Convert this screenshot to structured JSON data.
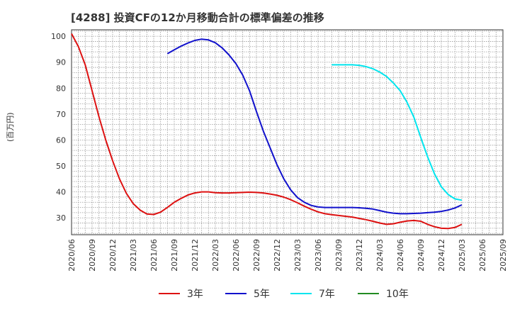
{
  "chart_data": {
    "type": "line",
    "title": "[4288]  投資CFの12か月移動合計の標準偏差の推移",
    "ylabel": "(百万円)",
    "xlabel": "",
    "ylim": [
      23.5,
      102.5
    ],
    "yticks": [
      30,
      40,
      50,
      60,
      70,
      80,
      90,
      100
    ],
    "xticks": [
      "2020/06",
      "2020/09",
      "2020/12",
      "2021/03",
      "2021/06",
      "2021/09",
      "2021/12",
      "2022/03",
      "2022/06",
      "2022/09",
      "2022/12",
      "2023/03",
      "2023/06",
      "2023/09",
      "2023/12",
      "2024/03",
      "2024/06",
      "2024/09",
      "2024/12",
      "2025/03",
      "2025/06",
      "2025/09"
    ],
    "grid": true,
    "legend_position": "bottom",
    "series": [
      {
        "name": "3年",
        "color": "#dd1111",
        "x": [
          "2020/06",
          "2020/07",
          "2020/08",
          "2020/09",
          "2020/10",
          "2020/11",
          "2020/12",
          "2021/01",
          "2021/02",
          "2021/03",
          "2021/04",
          "2021/05",
          "2021/06",
          "2021/07",
          "2021/08",
          "2021/09",
          "2021/10",
          "2021/11",
          "2021/12",
          "2022/01",
          "2022/02",
          "2022/03",
          "2022/04",
          "2022/05",
          "2022/06",
          "2022/07",
          "2022/08",
          "2022/09",
          "2022/10",
          "2022/11",
          "2022/12",
          "2023/01",
          "2023/02",
          "2023/03",
          "2023/04",
          "2023/05",
          "2023/06",
          "2023/07",
          "2023/08",
          "2023/09",
          "2023/10",
          "2023/11",
          "2023/12",
          "2024/01",
          "2024/02",
          "2024/03",
          "2024/04",
          "2024/05",
          "2024/06",
          "2024/07",
          "2024/08",
          "2024/09",
          "2024/10",
          "2024/11",
          "2024/12",
          "2025/01",
          "2025/02",
          "2025/03"
        ],
        "values": [
          101,
          96,
          89,
          79,
          69,
          60,
          52,
          45,
          39.5,
          35.5,
          33,
          31.5,
          31.3,
          32.2,
          34,
          36,
          37.5,
          38.8,
          39.6,
          40,
          40,
          39.7,
          39.6,
          39.6,
          39.7,
          39.8,
          39.9,
          39.8,
          39.6,
          39.2,
          38.7,
          38,
          37,
          35.8,
          34.5,
          33.3,
          32.3,
          31.6,
          31.2,
          30.9,
          30.6,
          30.3,
          29.8,
          29.3,
          28.7,
          28,
          27.5,
          27.7,
          28.3,
          28.8,
          29,
          28.7,
          27.5,
          26.6,
          26,
          25.9,
          26.3,
          27.5
        ]
      },
      {
        "name": "5年",
        "color": "#1111cc",
        "x": [
          "2021/08",
          "2021/09",
          "2021/10",
          "2021/11",
          "2021/12",
          "2022/01",
          "2022/02",
          "2022/03",
          "2022/04",
          "2022/05",
          "2022/06",
          "2022/07",
          "2022/08",
          "2022/09",
          "2022/10",
          "2022/11",
          "2022/12",
          "2023/01",
          "2023/02",
          "2023/03",
          "2023/04",
          "2023/05",
          "2023/06",
          "2023/07",
          "2023/08",
          "2023/09",
          "2023/10",
          "2023/11",
          "2023/12",
          "2024/01",
          "2024/02",
          "2024/03",
          "2024/04",
          "2024/05",
          "2024/06",
          "2024/07",
          "2024/08",
          "2024/09",
          "2024/10",
          "2024/11",
          "2024/12",
          "2025/01",
          "2025/02",
          "2025/03"
        ],
        "values": [
          93.3,
          94.8,
          96.2,
          97.4,
          98.4,
          98.9,
          98.6,
          97.5,
          95.5,
          92.8,
          89.5,
          85,
          79,
          71,
          63.5,
          57,
          50.5,
          45,
          40.8,
          37.8,
          36,
          34.8,
          34.2,
          34,
          34,
          34,
          34,
          34,
          33.9,
          33.7,
          33.4,
          32.8,
          32.2,
          31.8,
          31.6,
          31.6,
          31.7,
          31.8,
          32,
          32.2,
          32.5,
          33,
          33.8,
          35
        ]
      },
      {
        "name": "7年",
        "color": "#00e5ee",
        "x": [
          "2023/08",
          "2023/09",
          "2023/10",
          "2023/11",
          "2023/12",
          "2024/01",
          "2024/02",
          "2024/03",
          "2024/04",
          "2024/05",
          "2024/06",
          "2024/07",
          "2024/08",
          "2024/09",
          "2024/10",
          "2024/11",
          "2024/12",
          "2025/01",
          "2025/02",
          "2025/03"
        ],
        "values": [
          89,
          89,
          89,
          89,
          88.8,
          88.3,
          87.5,
          86.2,
          84.5,
          82,
          79,
          74.5,
          68.8,
          61,
          53.5,
          47,
          42,
          39,
          37.3,
          36.8
        ]
      },
      {
        "name": "10年",
        "color": "#228b22",
        "x": [],
        "values": []
      }
    ]
  }
}
